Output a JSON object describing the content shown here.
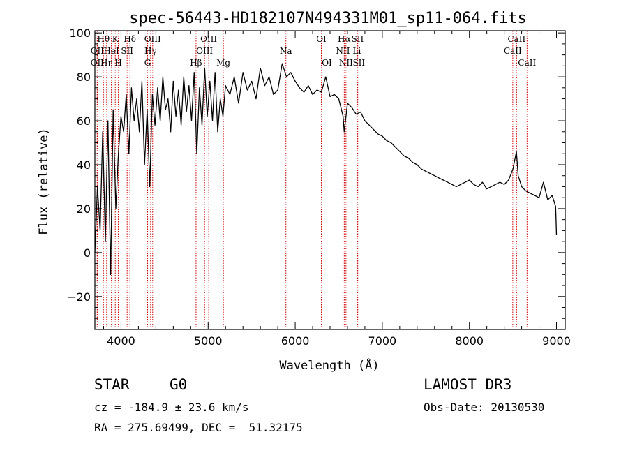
{
  "chart_data": {
    "type": "line",
    "title": "spec-56443-HD182107N494331M01_sp11-064.fits",
    "xlabel": "Wavelength (Å)",
    "ylabel": "Flux (relative)",
    "xlim": [
      3700,
      9100
    ],
    "ylim": [
      -35,
      101
    ],
    "xticks": [
      4000,
      5000,
      6000,
      7000,
      8000,
      9000
    ],
    "yticks": [
      -20,
      0,
      20,
      40,
      60,
      80,
      100
    ],
    "series": [
      {
        "name": "flux",
        "x": [
          3700,
          3730,
          3760,
          3790,
          3820,
          3850,
          3880,
          3910,
          3940,
          3970,
          4000,
          4030,
          4060,
          4090,
          4120,
          4150,
          4180,
          4210,
          4240,
          4270,
          4300,
          4330,
          4360,
          4390,
          4420,
          4450,
          4480,
          4510,
          4540,
          4570,
          4600,
          4630,
          4660,
          4690,
          4720,
          4750,
          4780,
          4810,
          4840,
          4870,
          4900,
          4930,
          4960,
          4990,
          5020,
          5050,
          5080,
          5110,
          5140,
          5170,
          5200,
          5250,
          5300,
          5350,
          5400,
          5450,
          5500,
          5550,
          5600,
          5650,
          5700,
          5750,
          5800,
          5850,
          5900,
          5950,
          6000,
          6050,
          6100,
          6150,
          6200,
          6250,
          6300,
          6350,
          6400,
          6450,
          6500,
          6550,
          6563,
          6600,
          6650,
          6700,
          6750,
          6800,
          6850,
          6900,
          6950,
          7000,
          7050,
          7100,
          7150,
          7200,
          7250,
          7300,
          7350,
          7400,
          7450,
          7500,
          7550,
          7600,
          7650,
          7700,
          7750,
          7800,
          7850,
          7900,
          7950,
          8000,
          8050,
          8100,
          8150,
          8200,
          8250,
          8300,
          8350,
          8400,
          8450,
          8500,
          8520,
          8540,
          8560,
          8600,
          8650,
          8700,
          8750,
          8800,
          8850,
          8900,
          8950,
          8990,
          9000
        ],
        "values": [
          0,
          30,
          10,
          55,
          5,
          60,
          -10,
          65,
          20,
          45,
          62,
          55,
          72,
          45,
          75,
          60,
          70,
          55,
          78,
          40,
          65,
          30,
          72,
          58,
          75,
          60,
          80,
          65,
          70,
          55,
          78,
          62,
          74,
          58,
          80,
          64,
          76,
          60,
          82,
          45,
          75,
          58,
          84,
          62,
          78,
          60,
          82,
          55,
          70,
          62,
          76,
          72,
          80,
          68,
          82,
          74,
          78,
          70,
          84,
          76,
          80,
          72,
          74,
          86,
          80,
          82,
          78,
          75,
          73,
          76,
          72,
          74,
          73,
          80,
          71,
          72,
          70,
          62,
          55,
          68,
          66,
          63,
          64,
          60,
          58,
          56,
          54,
          53,
          51,
          50,
          48,
          46,
          44,
          43,
          41,
          40,
          38,
          37,
          36,
          35,
          34,
          33,
          32,
          31,
          30,
          31,
          32,
          33,
          31,
          30,
          32,
          29,
          30,
          31,
          32,
          31,
          33,
          38,
          42,
          46,
          35,
          30,
          28,
          27,
          26,
          25,
          32,
          24,
          26,
          21,
          8
        ]
      }
    ],
    "spectral_lines": [
      {
        "label": "Hθ",
        "wavelength": 3798,
        "row": 1
      },
      {
        "label": "OII",
        "wavelength": 3727,
        "row": 2
      },
      {
        "label": "OII",
        "wavelength": 3727,
        "row": 3
      },
      {
        "label": "K",
        "wavelength": 3934,
        "row": 1
      },
      {
        "label": "HeI",
        "wavelength": 3889,
        "row": 2
      },
      {
        "label": "Hη",
        "wavelength": 3835,
        "row": 3
      },
      {
        "label": "SII",
        "wavelength": 4070,
        "row": 2
      },
      {
        "label": "H",
        "wavelength": 3969,
        "row": 3
      },
      {
        "label": "Hδ",
        "wavelength": 4102,
        "row": 1
      },
      {
        "label": "OIII",
        "wavelength": 4363,
        "row": 1
      },
      {
        "label": "Hγ",
        "wavelength": 4340,
        "row": 2
      },
      {
        "label": "G",
        "wavelength": 4305,
        "row": 3
      },
      {
        "label": "OIII",
        "wavelength": 5007,
        "row": 1
      },
      {
        "label": "OIII",
        "wavelength": 4959,
        "row": 2
      },
      {
        "label": "Hβ",
        "wavelength": 4861,
        "row": 3
      },
      {
        "label": "Mg",
        "wavelength": 5175,
        "row": 3
      },
      {
        "label": "Na",
        "wavelength": 5893,
        "row": 2
      },
      {
        "label": "OI",
        "wavelength": 6300,
        "row": 1
      },
      {
        "label": "OI",
        "wavelength": 6364,
        "row": 3
      },
      {
        "label": "Hα",
        "wavelength": 6563,
        "row": 1
      },
      {
        "label": "NII",
        "wavelength": 6548,
        "row": 2
      },
      {
        "label": "NII",
        "wavelength": 6583,
        "row": 3
      },
      {
        "label": "SII",
        "wavelength": 6716,
        "row": 1
      },
      {
        "label": "Li",
        "wavelength": 6708,
        "row": 2
      },
      {
        "label": "SII",
        "wavelength": 6731,
        "row": 3
      },
      {
        "label": "CaII",
        "wavelength": 8542,
        "row": 1
      },
      {
        "label": "CaII",
        "wavelength": 8498,
        "row": 2
      },
      {
        "label": "CaII",
        "wavelength": 8662,
        "row": 3
      }
    ]
  },
  "colors": {
    "line_marker": "#cc0000",
    "spectrum": "#000000",
    "axes": "#000000"
  },
  "info": {
    "object_class": "STAR",
    "subclass": "G0",
    "survey": "LAMOST DR3",
    "cz": "cz = -184.9 ± 23.6 km/s",
    "obs_date": "Obs-Date: 20130530",
    "coords": "RA = 275.69499, DEC =  51.32175"
  }
}
